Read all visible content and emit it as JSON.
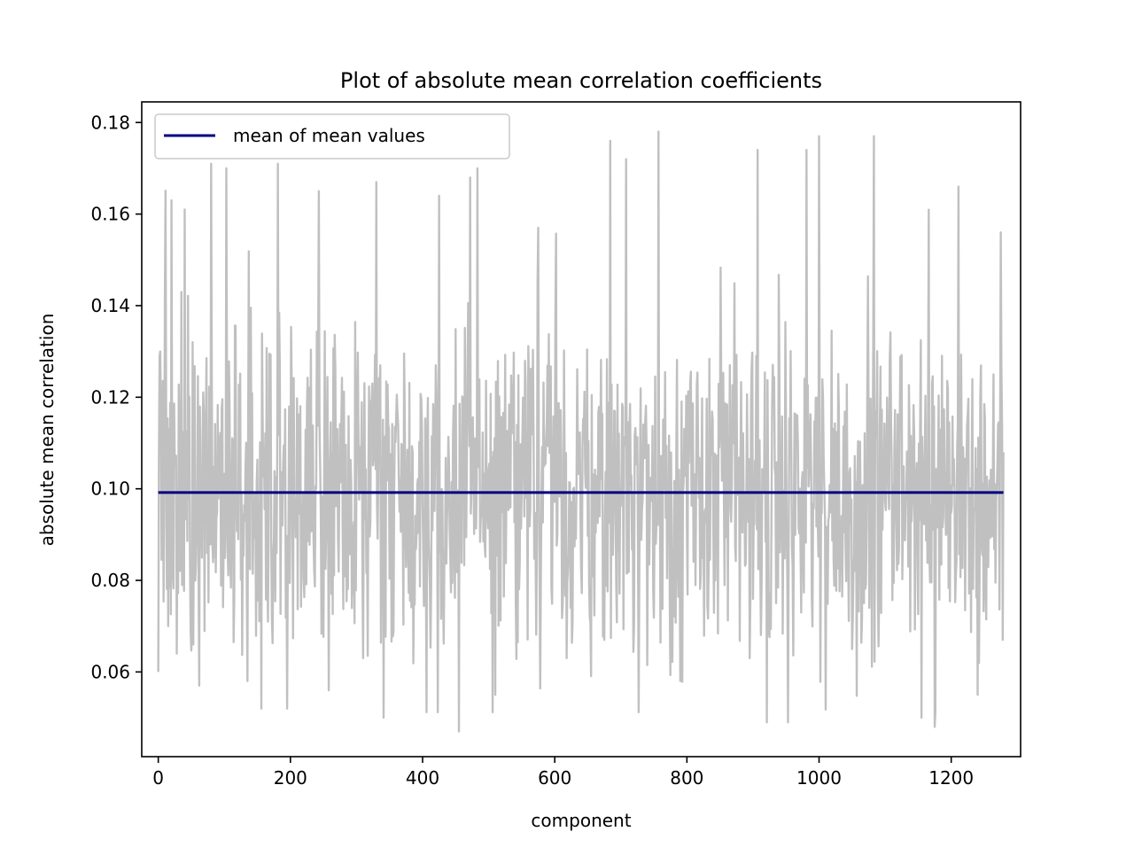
{
  "chart_data": {
    "type": "line",
    "title": "Plot of absolute mean correlation coefficients",
    "xlabel": "component",
    "ylabel": "absolute mean correlation",
    "xlim": [
      -25,
      1305
    ],
    "ylim": [
      0.0415,
      0.1845
    ],
    "x_ticks": [
      0,
      200,
      400,
      600,
      800,
      1000,
      1200
    ],
    "y_ticks": [
      0.06,
      0.08,
      0.1,
      0.12,
      0.14,
      0.16,
      0.18
    ],
    "x_tick_labels": [
      "0",
      "200",
      "400",
      "600",
      "800",
      "1000",
      "1200"
    ],
    "y_tick_labels": [
      "0.06",
      "0.08",
      "0.10",
      "0.12",
      "0.14",
      "0.16",
      "0.18"
    ],
    "grid": false,
    "legend": {
      "placement": "upper-left",
      "entries": [
        "mean of mean values"
      ]
    },
    "series": [
      {
        "name": "",
        "role": "values",
        "color": "#c0c0c0",
        "n_points": 1280,
        "x_start": 0,
        "x_end": 1279,
        "mean": 0.0993,
        "min": 0.0472,
        "max": 0.1783,
        "peaks": [
          [
            0,
            0.06
          ],
          [
            3,
            0.13
          ],
          [
            10,
            0.142
          ],
          [
            15,
            0.07
          ],
          [
            20,
            0.163
          ],
          [
            28,
            0.064
          ],
          [
            40,
            0.161
          ],
          [
            53,
            0.066
          ],
          [
            62,
            0.057
          ],
          [
            80,
            0.171
          ],
          [
            103,
            0.17
          ],
          [
            135,
            0.058
          ],
          [
            156,
            0.052
          ],
          [
            181,
            0.171
          ],
          [
            195,
            0.052
          ],
          [
            243,
            0.165
          ],
          [
            258,
            0.056
          ],
          [
            310,
            0.063
          ],
          [
            330,
            0.167
          ],
          [
            341,
            0.05
          ],
          [
            365,
            0.095
          ],
          [
            425,
            0.164
          ],
          [
            455,
            0.047
          ],
          [
            472,
            0.168
          ],
          [
            483,
            0.17
          ],
          [
            510,
            0.055
          ],
          [
            575,
            0.157
          ],
          [
            675,
            0.067
          ],
          [
            684,
            0.176
          ],
          [
            708,
            0.172
          ],
          [
            757,
            0.178
          ],
          [
            790,
            0.058
          ],
          [
            895,
            0.063
          ],
          [
            907,
            0.174
          ],
          [
            921,
            0.049
          ],
          [
            953,
            0.049
          ],
          [
            981,
            0.174
          ],
          [
            1000,
            0.177
          ],
          [
            1050,
            0.065
          ],
          [
            1083,
            0.177
          ],
          [
            1155,
            0.05
          ],
          [
            1175,
            0.048
          ],
          [
            1211,
            0.166
          ],
          [
            1240,
            0.055
          ],
          [
            1275,
            0.156
          ],
          [
            1279,
            0.108
          ]
        ]
      },
      {
        "name": "mean of mean values",
        "role": "mean",
        "color": "#000080",
        "x": [
          0,
          1279
        ],
        "y": [
          0.0992,
          0.0992
        ]
      }
    ]
  }
}
